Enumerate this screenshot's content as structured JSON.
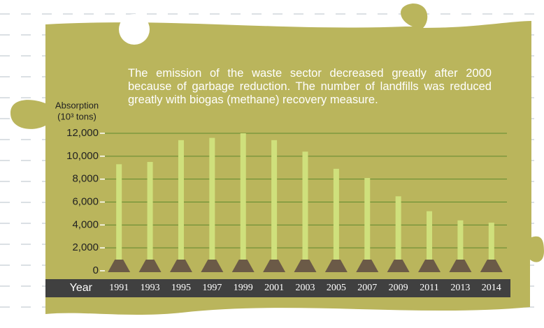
{
  "chart_data": {
    "type": "bar",
    "annotation": "The emission of the waste sector decreased greatly after 2000 because of garbage reduction. The number of landfills was reduced greatly with biogas (methane) recovery measure.",
    "y_label": "Absorption",
    "y_unit": "(10³ tons)",
    "x_label": "Year",
    "categories": [
      "1991",
      "1993",
      "1995",
      "1997",
      "1999",
      "2001",
      "2003",
      "2005",
      "2007",
      "2009",
      "2011",
      "2013",
      "2014"
    ],
    "values": [
      9300,
      9500,
      11400,
      11600,
      12000,
      11400,
      10400,
      8900,
      8100,
      6500,
      5200,
      4400,
      4200
    ],
    "color": "#cfe07c",
    "ylim": [
      0,
      12000
    ],
    "yticks": [
      0,
      {
        "value": 2000,
        "label": "2,000"
      },
      {
        "value": 4000,
        "label": "4,000"
      },
      {
        "value": 6000,
        "label": "6,000"
      },
      {
        "value": 8000,
        "label": "8,000"
      },
      {
        "value": 10000,
        "label": "10,000"
      },
      {
        "value": 12000,
        "label": "12,000"
      }
    ],
    "grid": true
  }
}
